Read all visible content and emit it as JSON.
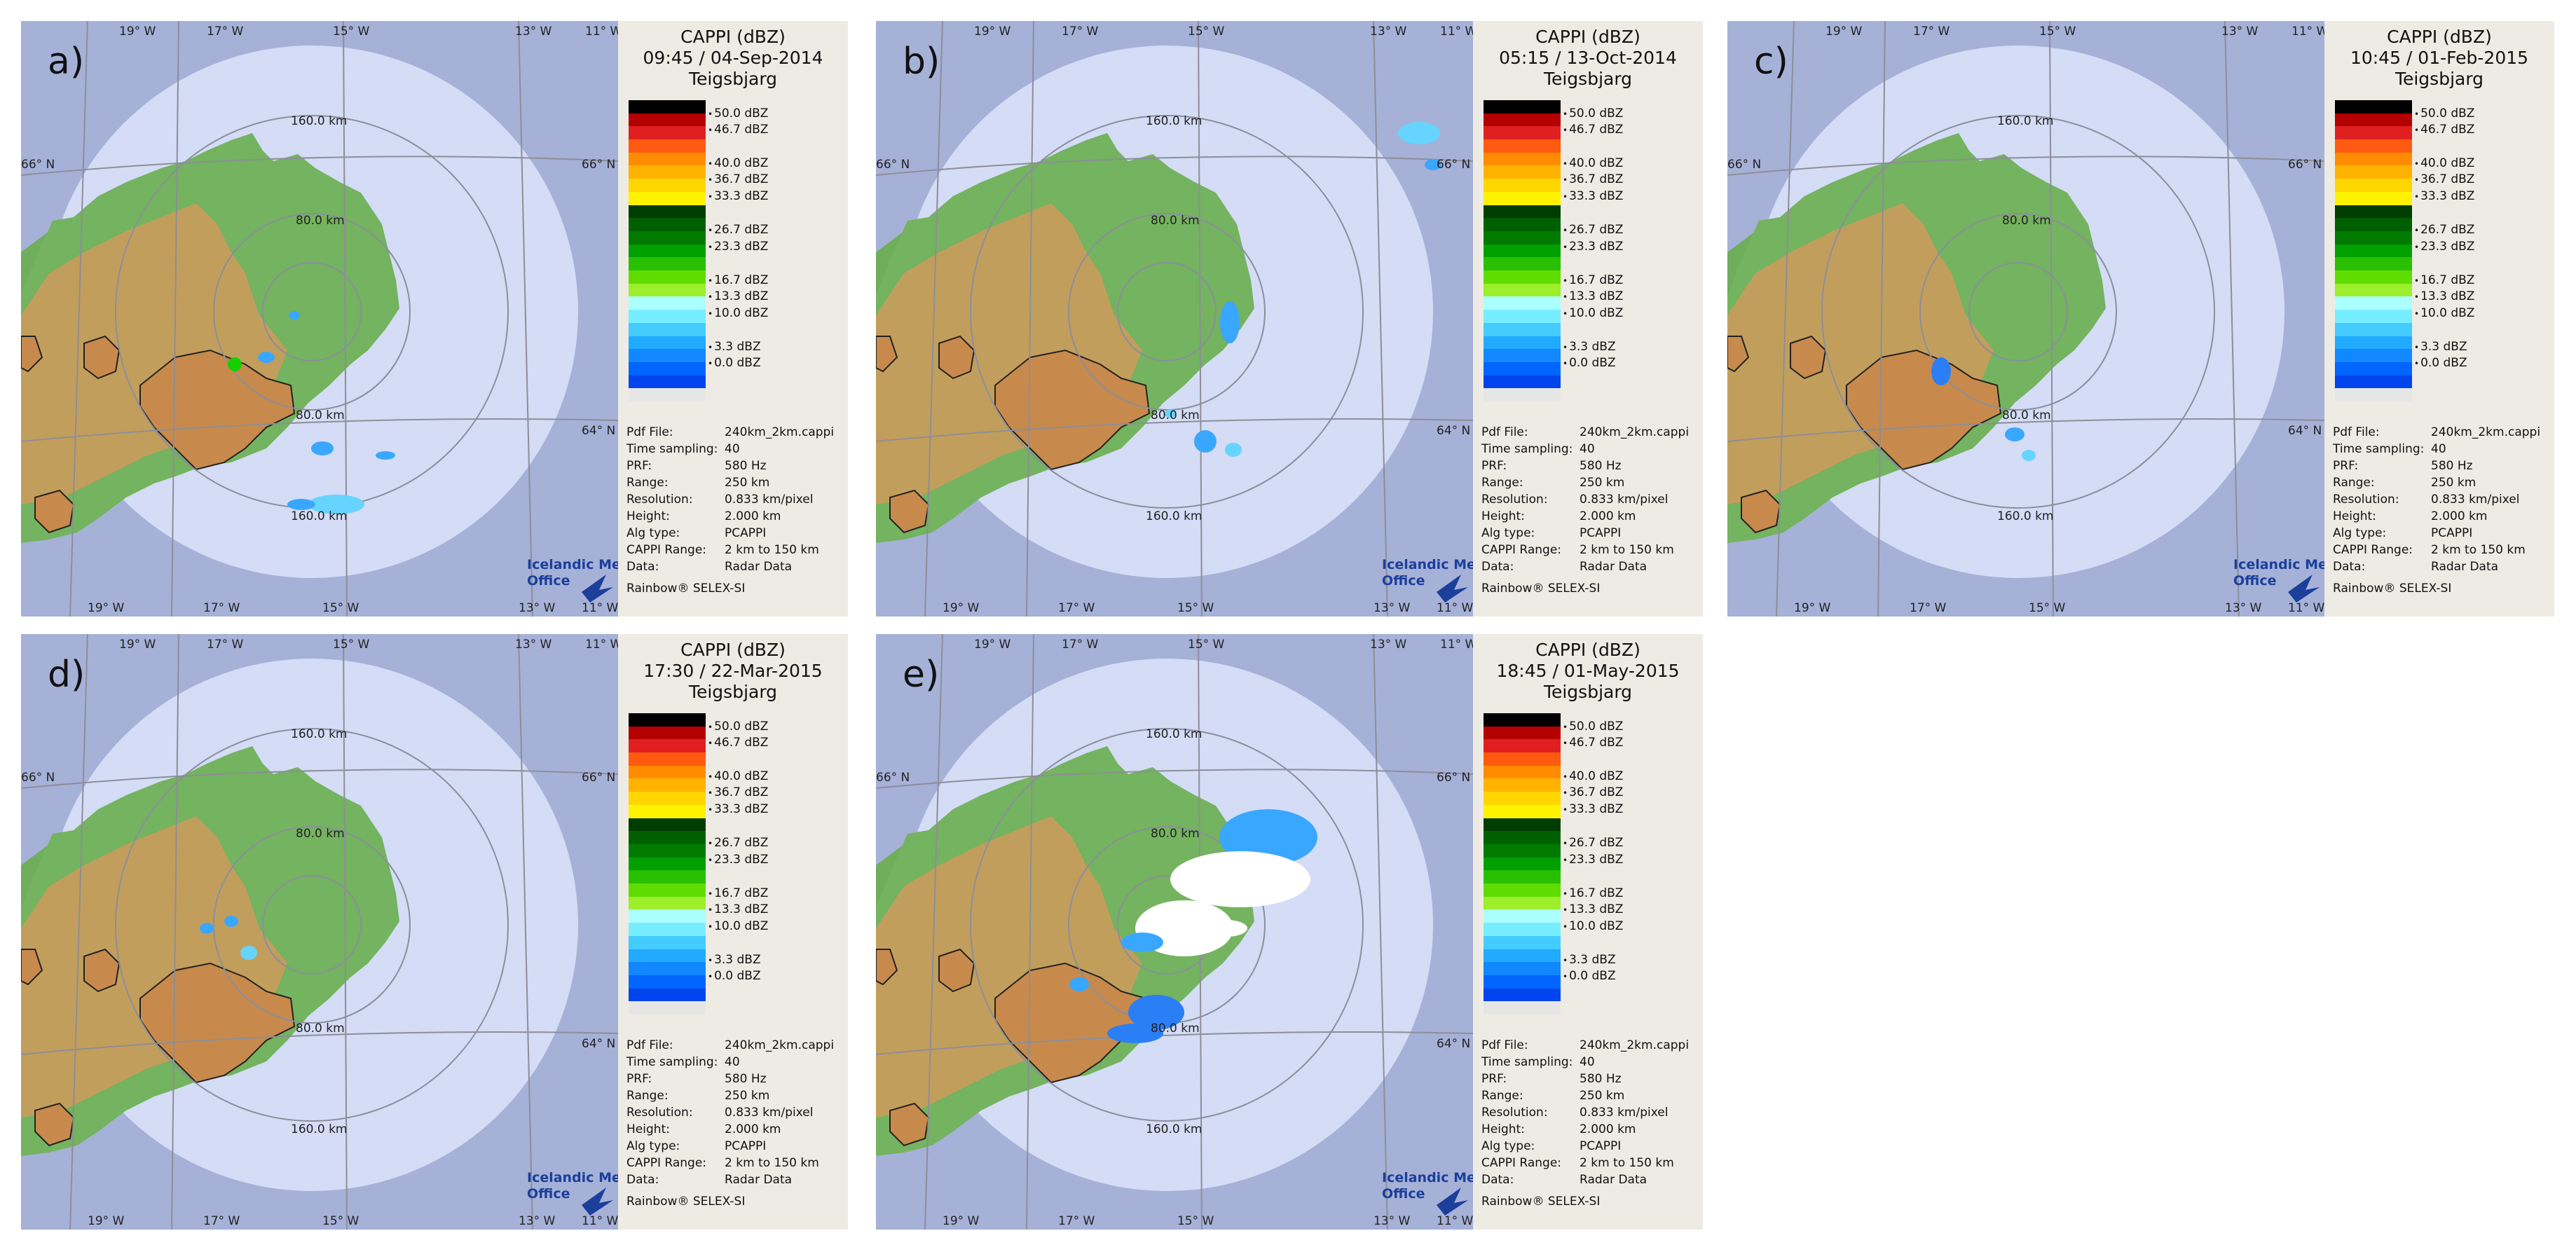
{
  "panels": [
    {
      "letter": "a)",
      "title": "CAPPI (dBZ)",
      "datetime": "09:45 / 04-Sep-2014",
      "site": "Teigsbjarg"
    },
    {
      "letter": "b)",
      "title": "CAPPI (dBZ)",
      "datetime": "05:15 / 13-Oct-2014",
      "site": "Teigsbjarg"
    },
    {
      "letter": "c)",
      "title": "CAPPI (dBZ)",
      "datetime": "10:45 / 01-Feb-2015",
      "site": "Teigsbjarg"
    },
    {
      "letter": "d)",
      "title": "CAPPI (dBZ)",
      "datetime": "17:30 / 22-Mar-2015",
      "site": "Teigsbjarg"
    },
    {
      "letter": "e)",
      "title": "CAPPI (dBZ)",
      "datetime": "18:45 / 01-May-2015",
      "site": "Teigsbjarg"
    }
  ],
  "colorbar": {
    "ticks": [
      "50.0 dBZ",
      "46.7 dBZ",
      "40.0 dBZ",
      "36.7 dBZ",
      "33.3 dBZ",
      "26.7 dBZ",
      "23.3 dBZ",
      "16.7 dBZ",
      "13.3 dBZ",
      "10.0 dBZ",
      "3.3 dBZ",
      "0.0 dBZ"
    ],
    "colors": [
      "#000000",
      "#b30000",
      "#e02020",
      "#ff5a10",
      "#ff8c00",
      "#ffb300",
      "#ffd600",
      "#fff200",
      "#003d00",
      "#005f00",
      "#007a00",
      "#00a000",
      "#28c000",
      "#60dd00",
      "#9cef2a",
      "#aaffff",
      "#77eeff",
      "#44ccff",
      "#22aaff",
      "#1188ff",
      "#0066ff",
      "#0044ee",
      "#e6e6e6"
    ]
  },
  "info": [
    {
      "key": "Pdf File:",
      "value": "240km_2km.cappi"
    },
    {
      "key": "Time sampling:",
      "value": "40"
    },
    {
      "key": "PRF:",
      "value": "580 Hz"
    },
    {
      "key": "Range:",
      "value": "250 km"
    },
    {
      "key": "Resolution:",
      "value": "0.833 km/pixel"
    },
    {
      "key": "Height:",
      "value": "2.000 km"
    },
    {
      "key": "Alg type:",
      "value": "PCAPPI"
    },
    {
      "key": "CAPPI Range:",
      "value": "2 km to 150 km"
    },
    {
      "key": "Data:",
      "value": "Radar Data"
    }
  ],
  "footer": "Rainbow® SELEX-SI",
  "map_labels": {
    "lon_top": [
      "19° W",
      "17° W",
      "15° W",
      "13° W",
      "11° W"
    ],
    "lon_bottom": [
      "19° W",
      "17° W",
      "15° W",
      "13° W",
      "11° W"
    ],
    "lat_right": [
      "66° N",
      "64° N"
    ],
    "lat_left": "66° N",
    "ring_top_outer": "160.0 km",
    "ring_top_inner": "80.0 km",
    "ring_bottom_inner": "80.0 km",
    "ring_bottom_outer": "160.0 km",
    "logo_line1": "Icelandic Met",
    "logo_line2": "Office"
  },
  "colors": {
    "background_outside": "#a6b1d8",
    "radar_disk": "#d4dcf6",
    "sidebar": "#eeebe4",
    "logo": "#1b3f9a"
  }
}
